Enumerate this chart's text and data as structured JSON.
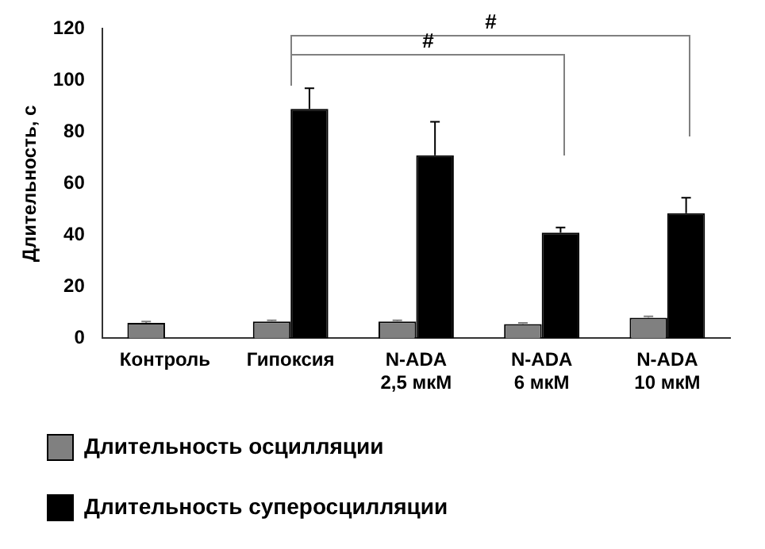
{
  "chart_data": {
    "type": "bar",
    "ylabel": "Длительность, с",
    "categories": [
      "Контроль",
      "Гипоксия",
      "N-ADA\n2,5 мкМ",
      "N-ADA\n6 мкМ",
      "N-ADA\n10 мкМ"
    ],
    "series": [
      {
        "name": "Длительность осцилляции",
        "color": "#808080",
        "values": [
          6,
          6.5,
          6.5,
          5.5,
          8
        ],
        "errors": [
          0.5,
          0.5,
          0.5,
          0.5,
          0.5
        ]
      },
      {
        "name": "Длительность суперосцилляции",
        "color": "#000000",
        "values": [
          null,
          89,
          71,
          41,
          48.5
        ],
        "errors": [
          null,
          8,
          13,
          2,
          6
        ]
      }
    ],
    "ylim": [
      0,
      120
    ],
    "yticks": [
      0,
      20,
      40,
      60,
      80,
      100,
      120
    ],
    "grid": false,
    "legend": "bottom",
    "annotations": [
      "#",
      "#"
    ]
  }
}
